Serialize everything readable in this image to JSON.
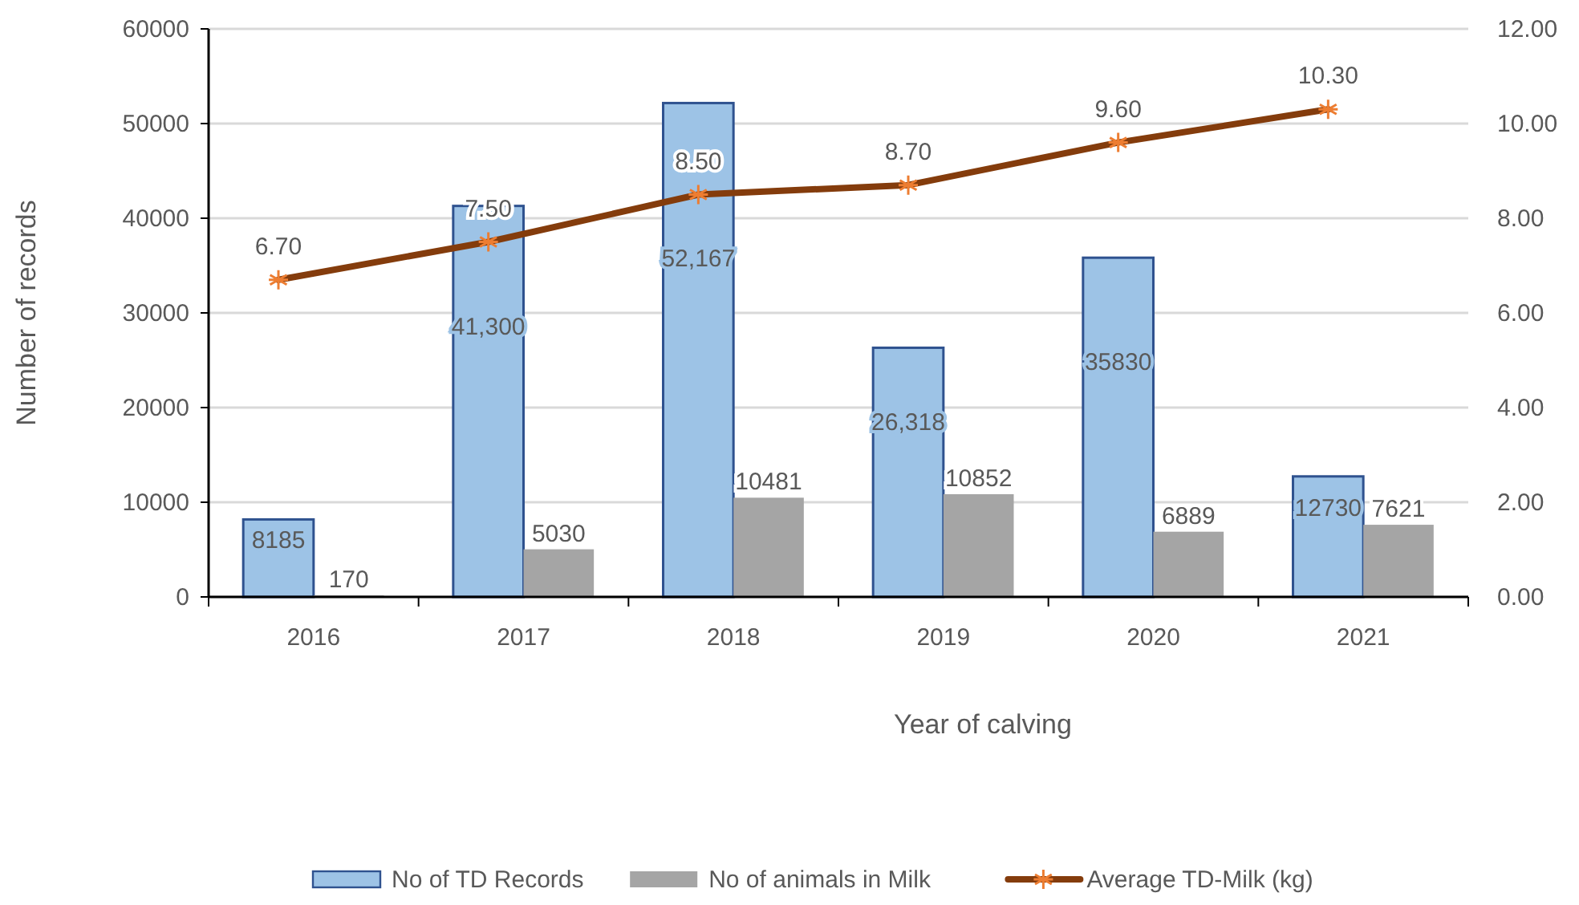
{
  "chart_data": {
    "type": "bar",
    "xlabel": "Year of calving",
    "ylabel": "Number of records",
    "categories": [
      "2016",
      "2017",
      "2018",
      "2019",
      "2020",
      "2021"
    ],
    "series": [
      {
        "name": "No of TD Records",
        "color": "#9dc3e6",
        "values": [
          8185,
          41300,
          52167,
          26318,
          35830,
          12730
        ],
        "value_labels": [
          "8185",
          "41,300",
          "52,167",
          "26,318",
          "35830",
          "12730"
        ]
      },
      {
        "name": "No of animals in Milk",
        "color": "#a5a5a5",
        "values": [
          170,
          5030,
          10481,
          10852,
          6889,
          7621
        ],
        "value_labels": [
          "170",
          "5030",
          "10481",
          "10852",
          "6889",
          "7621"
        ]
      },
      {
        "name": "Average TD-Milk (kg)",
        "type": "line",
        "axis": "y2",
        "color": "#843c0c",
        "marker": "cross",
        "values": [
          6.7,
          7.5,
          8.5,
          8.7,
          9.6,
          10.3
        ],
        "value_labels": [
          "6.70",
          "7.50",
          "8.50",
          "8.70",
          "9.60",
          "10.30"
        ]
      }
    ],
    "ylim": [
      0,
      60000
    ],
    "yticks": [
      0,
      10000,
      20000,
      30000,
      40000,
      50000,
      60000
    ],
    "y2lim": [
      0,
      12
    ],
    "y2ticks": [
      {
        "value": 0,
        "label": "0.00"
      },
      {
        "value": 2,
        "label": "2.00"
      },
      {
        "value": 4,
        "label": "4.00"
      },
      {
        "value": 6,
        "label": "6.00"
      },
      {
        "value": 8,
        "label": "8.00"
      },
      {
        "value": 10,
        "label": "10.00"
      },
      {
        "value": 12,
        "label": "12.00"
      }
    ],
    "grid": "y",
    "legend": "bottom"
  }
}
